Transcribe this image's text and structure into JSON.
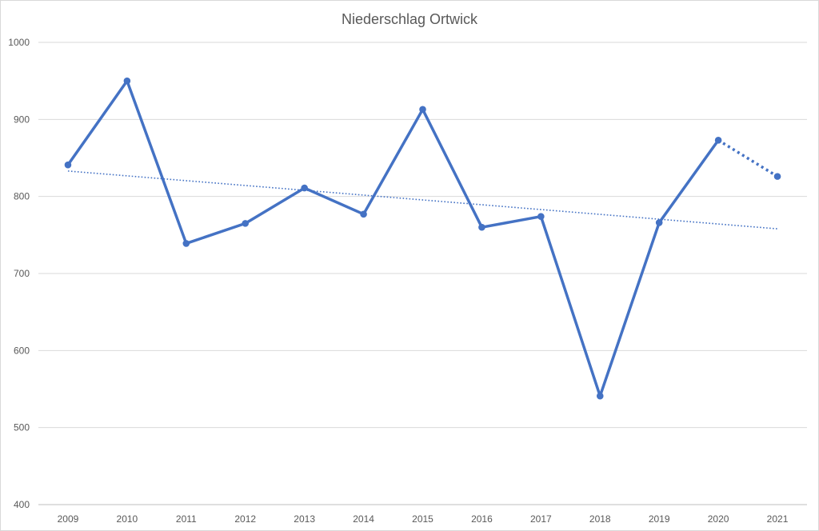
{
  "chart_data": {
    "type": "line",
    "title": "Niederschlag Ortwick",
    "xlabel": "",
    "ylabel": "",
    "categories": [
      "2009",
      "2010",
      "2011",
      "2012",
      "2013",
      "2014",
      "2015",
      "2016",
      "2017",
      "2018",
      "2019",
      "2020",
      "2021"
    ],
    "series": [
      {
        "values": [
          841,
          950,
          739,
          765,
          811,
          777,
          913,
          760,
          774,
          541,
          766,
          873,
          826
        ],
        "color": "#4472c4",
        "style": "solid line with markers; last segment 2020-2021 dotted"
      }
    ],
    "trendline": {
      "kind": "linear",
      "start": 833,
      "end": 758,
      "color": "#4472c4",
      "style": "dotted"
    },
    "ylim": [
      400,
      1000
    ],
    "yticks": [
      400,
      500,
      600,
      700,
      800,
      900,
      1000
    ],
    "grid": "horizontal",
    "legend": "none"
  }
}
